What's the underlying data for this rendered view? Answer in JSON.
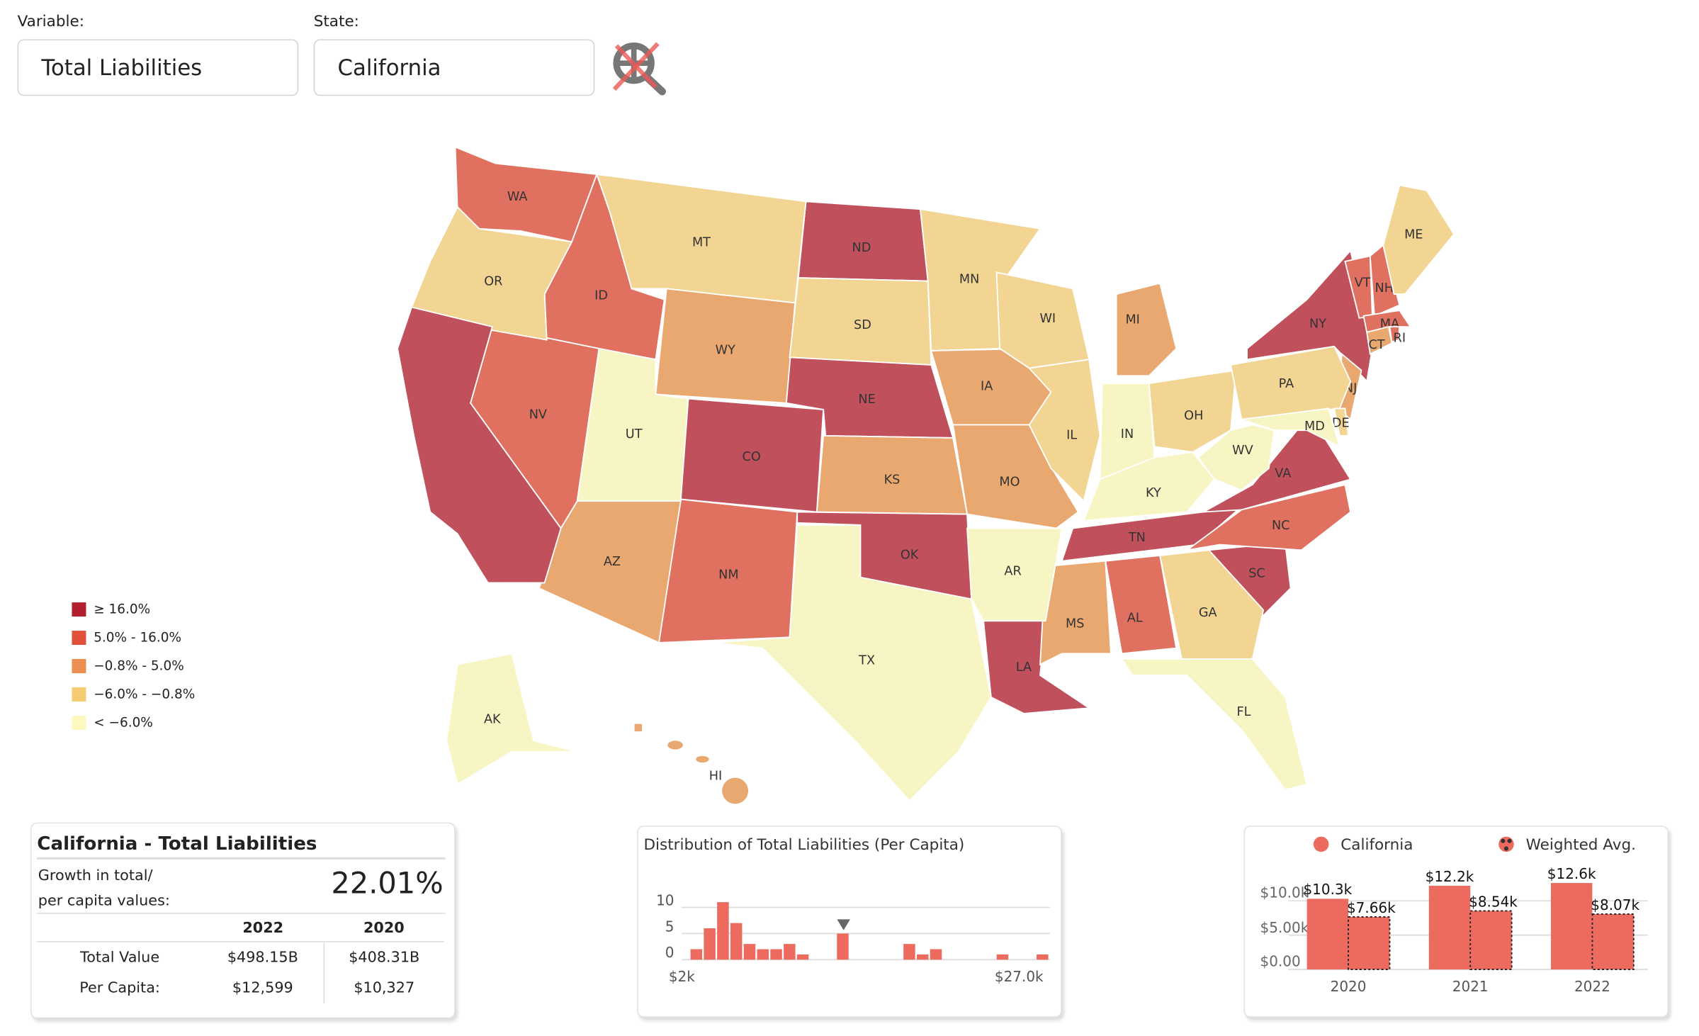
{
  "controls": {
    "variable_label": "Variable:",
    "variable_value": "Total Liabilities",
    "state_label": "State:",
    "state_value": "California",
    "reset_icon": "zoom-reset-icon"
  },
  "legend": {
    "items": [
      {
        "label": "≥ 16.0%",
        "color": "#b2202f"
      },
      {
        "label": "5.0% - 16.0%",
        "color": "#e0503a"
      },
      {
        "label": "−0.8% - 5.0%",
        "color": "#ec8f52"
      },
      {
        "label": "−6.0% - −0.8%",
        "color": "#f5cb74"
      },
      {
        "label": "< −6.0%",
        "color": "#fdf9be"
      }
    ],
    "map_fill": [
      "#c0505c",
      "#e07060",
      "#e9a870",
      "#f2d592",
      "#f8f5c4"
    ]
  },
  "map": {
    "selected": "CA",
    "states": [
      {
        "abbr": "CA",
        "cat": 0
      },
      {
        "abbr": "ND",
        "cat": 0
      },
      {
        "abbr": "NE",
        "cat": 0
      },
      {
        "abbr": "CO",
        "cat": 0
      },
      {
        "abbr": "OK",
        "cat": 0
      },
      {
        "abbr": "LA",
        "cat": 0
      },
      {
        "abbr": "TN",
        "cat": 0
      },
      {
        "abbr": "SC",
        "cat": 0
      },
      {
        "abbr": "VA",
        "cat": 0
      },
      {
        "abbr": "NY",
        "cat": 0
      },
      {
        "abbr": "WA",
        "cat": 1
      },
      {
        "abbr": "ID",
        "cat": 1
      },
      {
        "abbr": "NV",
        "cat": 1
      },
      {
        "abbr": "NM",
        "cat": 1
      },
      {
        "abbr": "AL",
        "cat": 1
      },
      {
        "abbr": "NC",
        "cat": 1
      },
      {
        "abbr": "VT",
        "cat": 1
      },
      {
        "abbr": "NH",
        "cat": 1
      },
      {
        "abbr": "MA",
        "cat": 1
      },
      {
        "abbr": "RI",
        "cat": 1
      },
      {
        "abbr": "WY",
        "cat": 2
      },
      {
        "abbr": "IA",
        "cat": 2
      },
      {
        "abbr": "KS",
        "cat": 2
      },
      {
        "abbr": "MO",
        "cat": 2
      },
      {
        "abbr": "AZ",
        "cat": 2
      },
      {
        "abbr": "MS",
        "cat": 2
      },
      {
        "abbr": "MI",
        "cat": 2
      },
      {
        "abbr": "NJ",
        "cat": 2
      },
      {
        "abbr": "CT",
        "cat": 2
      },
      {
        "abbr": "HI",
        "cat": 2
      },
      {
        "abbr": "OR",
        "cat": 3
      },
      {
        "abbr": "MT",
        "cat": 3
      },
      {
        "abbr": "SD",
        "cat": 3
      },
      {
        "abbr": "MN",
        "cat": 3
      },
      {
        "abbr": "WI",
        "cat": 3
      },
      {
        "abbr": "IL",
        "cat": 3
      },
      {
        "abbr": "OH",
        "cat": 3
      },
      {
        "abbr": "PA",
        "cat": 3
      },
      {
        "abbr": "GA",
        "cat": 3
      },
      {
        "abbr": "ME",
        "cat": 3
      },
      {
        "abbr": "DE",
        "cat": 3
      },
      {
        "abbr": "UT",
        "cat": 4
      },
      {
        "abbr": "TX",
        "cat": 4
      },
      {
        "abbr": "AR",
        "cat": 4
      },
      {
        "abbr": "IN",
        "cat": 4
      },
      {
        "abbr": "KY",
        "cat": 4
      },
      {
        "abbr": "WV",
        "cat": 4
      },
      {
        "abbr": "FL",
        "cat": 4
      },
      {
        "abbr": "AK",
        "cat": 4
      },
      {
        "abbr": "MD",
        "cat": 4
      }
    ]
  },
  "info": {
    "title": "California - Total Liabilities",
    "growth_line1": "Growth in total/",
    "growth_line2": "per capita values:",
    "growth_value": "22.01%",
    "col1": "2022",
    "col2": "2020",
    "rows": [
      {
        "label": "Total Value",
        "v1": "$498.15B",
        "v2": "$408.31B"
      },
      {
        "label": "Per Capita:",
        "v1": "$12,599",
        "v2": "$10,327"
      }
    ]
  },
  "chart_data": [
    {
      "type": "bar",
      "title": "Distribution of Total Liabilities (Per Capita)",
      "x_range": [
        "$2k",
        "$27.0k"
      ],
      "x_tick_labels": [
        "$2k",
        "$27.0k"
      ],
      "y_ticks": [
        "0",
        "5",
        "10"
      ],
      "ylim": [
        0,
        10
      ],
      "bins": 27,
      "counts": [
        2,
        6,
        11,
        7,
        3,
        2,
        2,
        3,
        1,
        0,
        0,
        5,
        0,
        0,
        0,
        0,
        3,
        1,
        2,
        0,
        0,
        0,
        0,
        1,
        0,
        0,
        1
      ],
      "marker_bin": 11,
      "bar_color": "#ec6a5e",
      "grid": true
    },
    {
      "type": "bar",
      "categories": [
        "2020",
        "2021",
        "2022"
      ],
      "series": [
        {
          "name": "California",
          "values": [
            10.3,
            12.2,
            12.6
          ],
          "labels": [
            "$10.3k",
            "$12.2k",
            "$12.6k"
          ]
        },
        {
          "name": "Weighted Avg.",
          "values": [
            7.66,
            8.54,
            8.07
          ],
          "labels": [
            "$7.66k",
            "$8.54k",
            "$8.07k"
          ]
        }
      ],
      "y_ticks": [
        "$0.00",
        "$5.00k",
        "$10.0k"
      ],
      "ylim": [
        0,
        12.6
      ],
      "unit": "thousand $",
      "bar_color": "#ec6a5e",
      "grid": true,
      "legend": "top"
    }
  ]
}
